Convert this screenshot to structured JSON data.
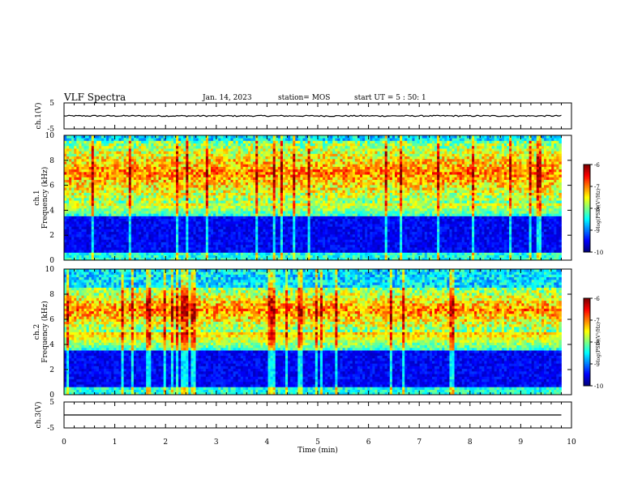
{
  "header": {
    "title": "VLF Spectra",
    "date": "Jan. 14, 2023",
    "station": "station= MOS",
    "start_ut": "start UT =  5 : 50: 1"
  },
  "chart_data": [
    {
      "type": "line",
      "panel": "ch1-waveform",
      "ylabel": "ch.1(V)",
      "ylim": [
        -5,
        5
      ],
      "yticks": [
        "5",
        "-5"
      ],
      "x": [
        0,
        9.8
      ],
      "y": [
        0,
        0
      ]
    },
    {
      "type": "heatmap",
      "panel": "ch1-spectrogram",
      "ylabel_channel": "ch.1",
      "ylabel": "Frequency (kHz)",
      "ylim": [
        0,
        10
      ],
      "yticks": [
        "0",
        "2",
        "4",
        "6",
        "8",
        "10"
      ],
      "data_extent_min": [
        0,
        9.8
      ],
      "colorbar": {
        "label": "log(PSD)(V²/Hz)",
        "ticks": [
          "-6",
          "-7",
          "-8",
          "-9",
          "-10"
        ],
        "range": [
          -10,
          -6
        ]
      },
      "intensity_band_khz": [
        4.5,
        9.5
      ],
      "background_band_khz": [
        0,
        4
      ]
    },
    {
      "type": "heatmap",
      "panel": "ch2-spectrogram",
      "ylabel_channel": "ch.2",
      "ylabel": "Frequency (kHz)",
      "ylim": [
        0,
        10
      ],
      "yticks": [
        "0",
        "2",
        "4",
        "6",
        "8",
        "10"
      ],
      "data_extent_min": [
        0,
        9.8
      ],
      "colorbar": {
        "label": "log(PSD)(V²/Hz)",
        "ticks": [
          "-6",
          "-7",
          "-8",
          "-9",
          "-10"
        ],
        "range": [
          -10,
          -6
        ]
      },
      "intensity_band_khz": [
        5,
        8.5
      ],
      "background_band_khz": [
        0,
        4
      ]
    },
    {
      "type": "line",
      "panel": "ch3-waveform",
      "ylabel": "ch.3(V)",
      "ylim": [
        -5,
        5
      ],
      "yticks": [
        "5",
        "-5"
      ],
      "x": [
        0,
        9.8
      ],
      "y": [
        0,
        0
      ]
    }
  ],
  "xaxis": {
    "label": "Time (min)",
    "xlim": [
      0,
      10
    ],
    "ticks": [
      "0",
      "1",
      "2",
      "3",
      "4",
      "5",
      "6",
      "7",
      "8",
      "9",
      "10"
    ]
  }
}
